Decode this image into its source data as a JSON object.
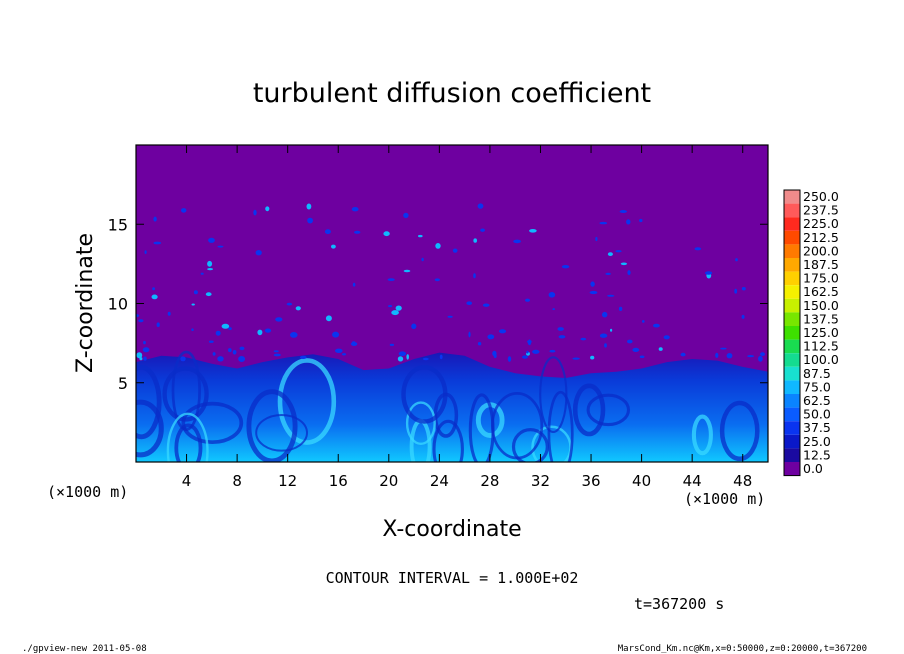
{
  "chart_data": {
    "type": "heatmap",
    "title": "turbulent diffusion coefficient",
    "xlabel": "X-coordinate",
    "ylabel": "Z-coordinate",
    "x_unit_left": "(×1000 m)",
    "x_unit_right": "(×1000 m)",
    "xlim": [
      0,
      50
    ],
    "ylim": [
      0,
      20
    ],
    "x_ticks": [
      4,
      8,
      12,
      16,
      20,
      24,
      28,
      32,
      36,
      40,
      44,
      48
    ],
    "y_ticks": [
      5,
      10,
      15
    ],
    "colorbar_levels": [
      "250.0",
      "237.5",
      "225.0",
      "212.5",
      "200.0",
      "187.5",
      "175.0",
      "162.5",
      "150.0",
      "137.5",
      "125.0",
      "112.5",
      "100.0",
      "87.5",
      "75.0",
      "62.5",
      "50.0",
      "37.5",
      "25.0",
      "12.5",
      "0.0"
    ],
    "colorbar_colors": [
      "#f08b8b",
      "#ff5a5a",
      "#ff2a1f",
      "#ff4a00",
      "#ff7a00",
      "#ffa800",
      "#ffd000",
      "#f5f000",
      "#c8f000",
      "#78e600",
      "#3ee000",
      "#19dc50",
      "#14dc90",
      "#18e0d0",
      "#10b8ff",
      "#0a84ff",
      "#0a5cff",
      "#0a34f0",
      "#0a18c8",
      "#1a0aa0",
      "#6e00a0"
    ],
    "background_value": 0.0,
    "boundary_layer_height_km": [
      6.3,
      6.7,
      6.6,
      6.2,
      5.9,
      6.3,
      6.6,
      6.8,
      6.5,
      5.8,
      5.9,
      6.5,
      6.9,
      6.7,
      6.0,
      5.6,
      5.4,
      5.3,
      5.6,
      5.7,
      5.9,
      6.3,
      6.5,
      6.4,
      6.0,
      5.7
    ],
    "contour_interval_label": "CONTOUR INTERVAL = 1.000E+02",
    "time_label": "t=367200 s"
  },
  "footer": {
    "left": "./gpview-new   2011-05-08",
    "right": "MarsCond_Km.nc@Km,x=0:50000,z=0:20000,t=367200"
  }
}
